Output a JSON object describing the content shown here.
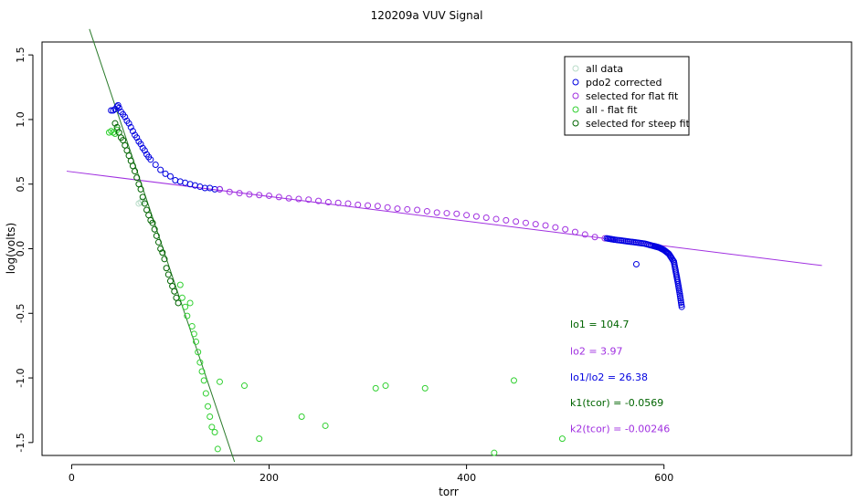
{
  "chart_data": {
    "type": "scatter",
    "title": "120209a   VUV Signal",
    "xlabel": "torr",
    "ylabel": "log(volts)",
    "xlim": [
      -30,
      790
    ],
    "ylim": [
      -1.6,
      1.6
    ],
    "x_ticks": [
      0,
      200,
      400,
      600
    ],
    "x_tick_labels": [
      "0",
      "200",
      "400",
      "600"
    ],
    "y_ticks": [
      -1.5,
      -1.0,
      -0.5,
      0.0,
      0.5,
      1.0,
      1.5
    ],
    "y_tick_labels": [
      "-1.5",
      "-1.0",
      "-0.5",
      "0.0",
      "0.5",
      "1.0",
      "1.5"
    ],
    "grid": false,
    "legend_position": "top-right",
    "colors": {
      "all_data": "#b8dcc8",
      "pdo2_corrected": "#0000e0",
      "flat_fit": "#a030e0",
      "all_minus_flat": "#30d030",
      "steep_fit": "#006400",
      "steep_line": "#2a7a2a"
    },
    "series": [
      {
        "name": "pdo2 corrected",
        "key": "pdo2",
        "x": [
          40,
          42,
          44,
          46,
          47,
          48,
          50,
          52,
          54,
          56,
          58,
          60,
          62,
          64,
          66,
          68,
          70,
          72,
          74,
          76,
          78,
          80,
          85,
          90,
          95,
          100,
          105,
          110,
          115,
          120,
          125,
          130,
          135,
          140,
          145,
          150
        ],
        "y": [
          1.07,
          1.07,
          1.08,
          1.1,
          1.11,
          1.09,
          1.06,
          1.04,
          1.02,
          0.99,
          0.97,
          0.94,
          0.91,
          0.88,
          0.86,
          0.83,
          0.81,
          0.78,
          0.76,
          0.73,
          0.71,
          0.69,
          0.65,
          0.61,
          0.58,
          0.56,
          0.53,
          0.52,
          0.51,
          0.5,
          0.49,
          0.48,
          0.47,
          0.47,
          0.46,
          0.46
        ]
      },
      {
        "name": "selected for flat fit",
        "key": "flat",
        "x": [
          150,
          160,
          170,
          180,
          190,
          200,
          210,
          220,
          230,
          240,
          250,
          260,
          270,
          280,
          290,
          300,
          310,
          320,
          330,
          340,
          350,
          360,
          370,
          380,
          390,
          400,
          410,
          420,
          430,
          440,
          450,
          460,
          470,
          480,
          490,
          500,
          510,
          520,
          530,
          540
        ],
        "y": [
          0.46,
          0.44,
          0.43,
          0.42,
          0.415,
          0.41,
          0.4,
          0.39,
          0.385,
          0.38,
          0.37,
          0.36,
          0.355,
          0.35,
          0.34,
          0.335,
          0.33,
          0.32,
          0.31,
          0.305,
          0.3,
          0.29,
          0.28,
          0.275,
          0.27,
          0.26,
          0.25,
          0.24,
          0.23,
          0.22,
          0.21,
          0.2,
          0.19,
          0.18,
          0.165,
          0.15,
          0.13,
          0.11,
          0.09,
          0.08
        ]
      },
      {
        "name": "all - flat fit",
        "key": "allflat",
        "x": [
          38,
          40,
          42,
          44,
          46,
          110,
          112,
          115,
          117,
          120,
          122,
          124,
          126,
          128,
          130,
          132,
          134,
          136,
          138,
          140,
          142,
          145,
          148,
          150,
          175,
          190,
          233,
          257,
          308,
          318,
          358,
          428,
          448,
          497
        ],
        "y": [
          0.9,
          0.91,
          0.9,
          0.89,
          0.92,
          -0.28,
          -0.38,
          -0.45,
          -0.52,
          -0.42,
          -0.6,
          -0.66,
          -0.72,
          -0.8,
          -0.88,
          -0.95,
          -1.02,
          -1.12,
          -1.22,
          -1.3,
          -1.38,
          -1.42,
          -1.55,
          -1.03,
          -1.06,
          -1.47,
          -1.3,
          -1.37,
          -1.08,
          -1.06,
          -1.08,
          -1.58,
          -1.02,
          -1.47
        ]
      },
      {
        "name": "selected for steep fit",
        "key": "steep",
        "x": [
          44,
          46,
          48,
          50,
          52,
          54,
          56,
          58,
          60,
          62,
          64,
          66,
          68,
          70,
          72,
          74,
          76,
          78,
          80,
          82,
          84,
          86,
          88,
          90,
          92,
          94,
          96,
          98,
          100,
          102,
          104,
          106,
          108
        ],
        "y": [
          0.97,
          0.94,
          0.9,
          0.86,
          0.84,
          0.8,
          0.76,
          0.72,
          0.68,
          0.64,
          0.6,
          0.55,
          0.5,
          0.46,
          0.4,
          0.35,
          0.3,
          0.26,
          0.22,
          0.2,
          0.15,
          0.1,
          0.05,
          0.0,
          -0.03,
          -0.08,
          -0.15,
          -0.2,
          -0.25,
          -0.29,
          -0.33,
          -0.38,
          -0.42
        ]
      },
      {
        "name": "all data",
        "key": "all",
        "x": [
          68,
          70,
          72
        ],
        "y": [
          0.35,
          0.36,
          0.37
        ]
      }
    ],
    "tail": {
      "x": [
        542,
        550,
        560,
        570,
        580,
        590,
        595,
        600,
        605,
        610,
        612,
        614,
        616,
        618
      ],
      "y": [
        0.08,
        0.07,
        0.06,
        0.05,
        0.04,
        0.02,
        0.01,
        -0.01,
        -0.04,
        -0.1,
        -0.18,
        -0.26,
        -0.35,
        -0.45
      ],
      "outlier": [
        572,
        -0.12
      ]
    },
    "fit_lines": [
      {
        "key": "flat",
        "x": [
          -5,
          760
        ],
        "y": [
          0.6,
          -0.13
        ]
      },
      {
        "key": "steep",
        "x": [
          18,
          165
        ],
        "y": [
          1.7,
          -1.65
        ]
      }
    ],
    "annotations": [
      {
        "label": "lo1 =",
        "value": "104.7",
        "key": "steep",
        "x": 505,
        "y": -0.61
      },
      {
        "label": "lo2 =",
        "value": "3.97",
        "key": "flat",
        "x": 505,
        "y": -0.82
      },
      {
        "label": "lo1/lo2 =",
        "value": "26.38",
        "key": "pdo2",
        "x": 505,
        "y": -1.02
      },
      {
        "label": "k1(tcor) =",
        "value": "-0.0569",
        "key": "steep",
        "x": 505,
        "y": -1.22
      },
      {
        "label": "k2(tcor) =",
        "value": "-0.00246",
        "key": "flat",
        "x": 505,
        "y": -1.42
      }
    ]
  }
}
